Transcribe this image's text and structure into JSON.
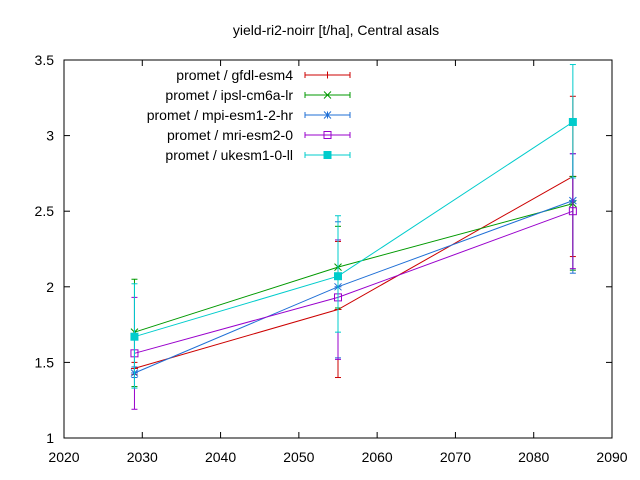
{
  "chart_data": {
    "type": "line",
    "title": "yield-ri2-noirr [t/ha], Central asals",
    "xlabel": "",
    "ylabel": "",
    "xlim": [
      2020,
      2090
    ],
    "ylim": [
      1,
      3.5
    ],
    "xticks": [
      "2020",
      "2030",
      "2040",
      "2050",
      "2060",
      "2070",
      "2080",
      "2090"
    ],
    "yticks": [
      "1",
      "1.5",
      "2",
      "2.5",
      "3",
      "3.5"
    ],
    "grid": false,
    "legend_position": "top-left",
    "x": [
      2029,
      2055,
      2085
    ],
    "series": [
      {
        "name": "promet / gfdl-esm4",
        "color": "#cc0000",
        "marker": "plus",
        "values": [
          1.46,
          1.85,
          2.73
        ],
        "err_low": [
          1.42,
          1.4,
          2.2
        ],
        "err_high": [
          1.5,
          2.3,
          3.26
        ]
      },
      {
        "name": "promet / ipsl-cm6a-lr",
        "color": "#009900",
        "marker": "cross",
        "values": [
          1.7,
          2.13,
          2.55
        ],
        "err_low": [
          1.34,
          1.86,
          2.11
        ],
        "err_high": [
          2.05,
          2.4,
          2.73
        ]
      },
      {
        "name": "promet / mpi-esm1-2-hr",
        "color": "#1f6fd6",
        "marker": "star",
        "values": [
          1.43,
          2.0,
          2.57
        ],
        "err_low": [
          1.4,
          1.53,
          2.09
        ],
        "err_high": [
          1.47,
          2.43,
          2.88
        ]
      },
      {
        "name": "promet / mri-esm2-0",
        "color": "#9900cc",
        "marker": "square-open",
        "values": [
          1.56,
          1.93,
          2.5
        ],
        "err_low": [
          1.19,
          1.52,
          2.12
        ],
        "err_high": [
          1.93,
          2.31,
          2.88
        ]
      },
      {
        "name": "promet / ukesm1-0-ll",
        "color": "#00cccc",
        "marker": "square-filled",
        "values": [
          1.67,
          2.07,
          3.09
        ],
        "err_low": [
          1.33,
          1.7,
          2.72
        ],
        "err_high": [
          2.02,
          2.47,
          3.47
        ]
      }
    ]
  }
}
